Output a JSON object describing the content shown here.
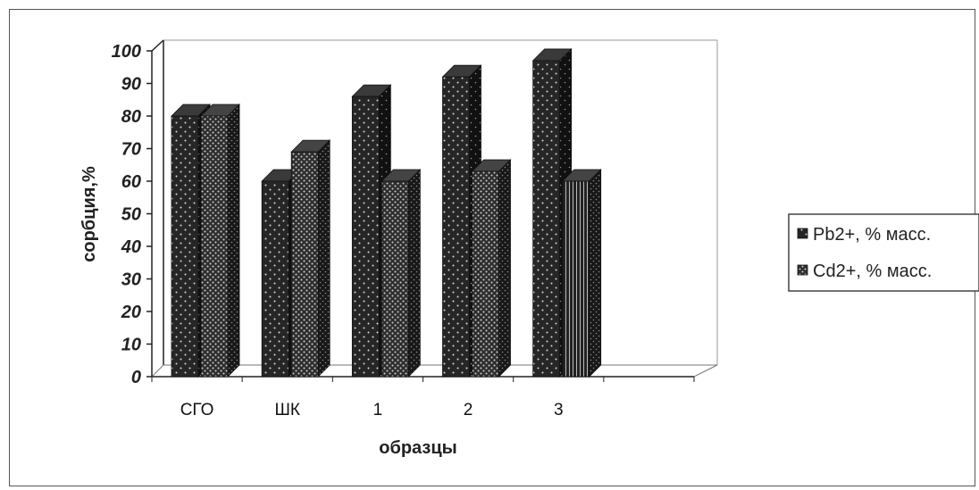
{
  "chart_data": {
    "type": "bar",
    "categories": [
      "СГО",
      "ШК",
      "1",
      "2",
      "3"
    ],
    "series": [
      {
        "name": "Pb2+, % масс.",
        "values": [
          80,
          60,
          86,
          92,
          97
        ]
      },
      {
        "name": "Cd2+, % масс.",
        "values": [
          80,
          69,
          60,
          63,
          60
        ]
      }
    ],
    "title": "",
    "xlabel": "образцы",
    "ylabel": "сорбция,%",
    "ylim": [
      0,
      100
    ],
    "yticks": [
      0,
      10,
      20,
      30,
      40,
      50,
      60,
      70,
      80,
      90,
      100
    ],
    "grid": false,
    "legend_position": "right",
    "three_d": true
  }
}
